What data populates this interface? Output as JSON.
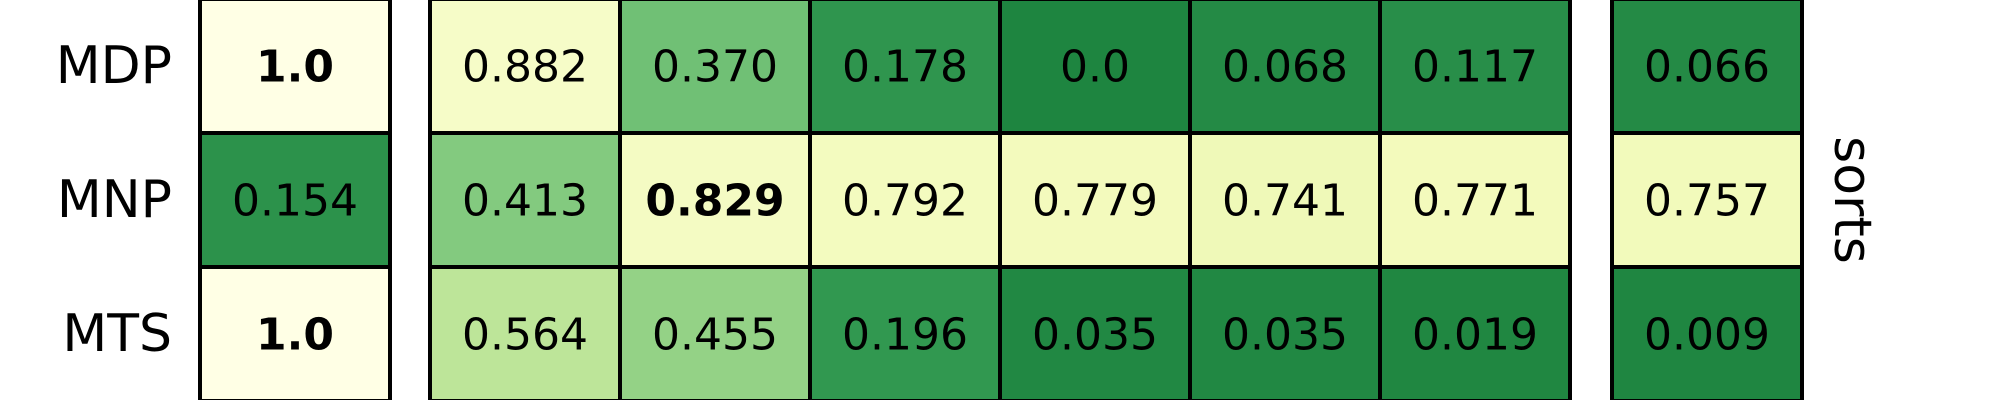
{
  "chart_data": {
    "type": "heatmap",
    "colormap": "YlGn",
    "colormap_endpoints": [
      "#ffffe5",
      "#1e8540"
    ],
    "cell_border_color": "#000000",
    "rows": [
      "MDP",
      "MNP",
      "MTS"
    ],
    "side_label": "sorts",
    "groups": [
      {
        "columns": 1,
        "values": [
          [
            1.0
          ],
          [
            0.154
          ],
          [
            1.0
          ]
        ],
        "labels": [
          [
            "1.0"
          ],
          [
            "0.154"
          ],
          [
            "1.0"
          ]
        ],
        "bold": [
          [
            true
          ],
          [
            false
          ],
          [
            true
          ]
        ]
      },
      {
        "columns": 6,
        "values": [
          [
            0.882,
            0.37,
            0.178,
            0.0,
            0.068,
            0.117
          ],
          [
            0.413,
            0.829,
            0.792,
            0.779,
            0.741,
            0.771
          ],
          [
            0.564,
            0.455,
            0.196,
            0.035,
            0.035,
            0.019
          ]
        ],
        "labels": [
          [
            "0.882",
            "0.370",
            "0.178",
            "0.0",
            "0.068",
            "0.117"
          ],
          [
            "0.413",
            "0.829",
            "0.792",
            "0.779",
            "0.741",
            "0.771"
          ],
          [
            "0.564",
            "0.455",
            "0.196",
            "0.035",
            "0.035",
            "0.019"
          ]
        ],
        "bold": [
          [
            false,
            false,
            false,
            false,
            false,
            false
          ],
          [
            false,
            true,
            false,
            false,
            false,
            false
          ],
          [
            false,
            false,
            false,
            false,
            false,
            false
          ]
        ]
      },
      {
        "columns": 1,
        "values": [
          [
            0.066
          ],
          [
            0.757
          ],
          [
            0.009
          ]
        ],
        "labels": [
          [
            "0.066"
          ],
          [
            "0.757"
          ],
          [
            "0.009"
          ]
        ],
        "bold": [
          [
            false
          ],
          [
            false
          ],
          [
            false
          ]
        ]
      }
    ]
  }
}
